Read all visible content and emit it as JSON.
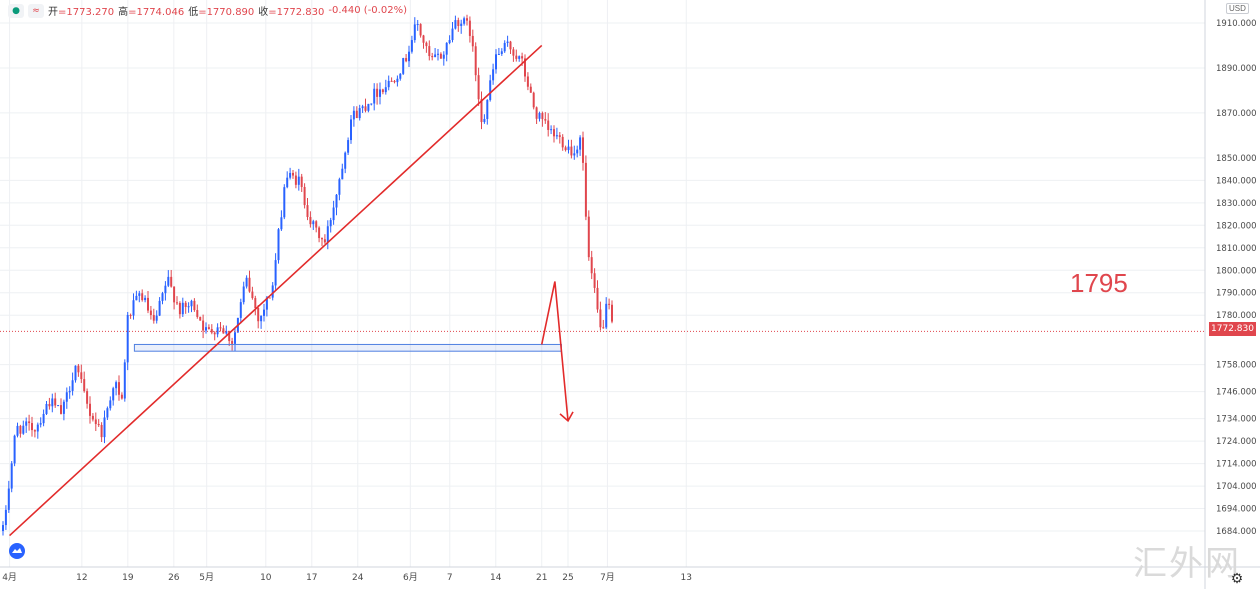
{
  "legend": {
    "open_label": "开",
    "open": "=1773.270",
    "high_label": "高",
    "high": "=1774.046",
    "low_label": "低",
    "low": "=1770.890",
    "close_label": "收",
    "close": "=1772.830",
    "change": "-0.440 (-0.02%)",
    "icon1": "●",
    "icon2": "≈"
  },
  "currency": "USD",
  "last_price_label": "1772.830",
  "annotation": "1795",
  "watermark": "汇外网",
  "icons": {
    "logo": "cloud-logo-icon",
    "settings": "gear-icon",
    "settings_glyph": "⚙"
  },
  "colors": {
    "up": "#2962ff",
    "down": "#e0464d",
    "trendline": "#e22b2b",
    "support_zone": "#4f7fe0"
  },
  "chart_data": {
    "type": "candlestick",
    "y_tick_labels": [
      "1684.000",
      "1694.000",
      "1704.000",
      "1714.000",
      "1724.000",
      "1734.000",
      "1746.000",
      "1758.000",
      "1780.000",
      "1790.000",
      "1800.000",
      "1810.000",
      "1820.000",
      "1830.000",
      "1840.000",
      "1850.000",
      "1870.000",
      "1890.000",
      "1910.000"
    ],
    "x_tick_labels": [
      "4月",
      "12",
      "19",
      "26",
      "5月",
      "10",
      "17",
      "24",
      "6月",
      "7",
      "14",
      "21",
      "25",
      "7月",
      "13"
    ],
    "ylim": [
      1668,
      1918
    ],
    "trendline": {
      "from": {
        "date": "2021-04-01",
        "price": 1682
      },
      "to": {
        "date": "2021-06-21",
        "price": 1900
      }
    },
    "support_zone": {
      "from_date": "2021-04-20",
      "to_date": "2021-06-24",
      "low": 1764,
      "high": 1767
    },
    "projection": [
      {
        "date": "2021-06-21",
        "price": 1767
      },
      {
        "date": "2021-06-23",
        "price": 1795
      },
      {
        "date": "2021-06-25",
        "price": 1733
      }
    ],
    "anchors": [
      [
        "2021-03-31",
        1684
      ],
      [
        "2021-04-02",
        1730
      ],
      [
        "2021-04-05",
        1730
      ],
      [
        "2021-04-07",
        1742
      ],
      [
        "2021-04-09",
        1736
      ],
      [
        "2021-04-11",
        1758
      ],
      [
        "2021-04-13",
        1738
      ],
      [
        "2021-04-15",
        1728
      ],
      [
        "2021-04-17",
        1752
      ],
      [
        "2021-04-18",
        1738
      ],
      [
        "2021-04-19",
        1779
      ],
      [
        "2021-04-21",
        1790
      ],
      [
        "2021-04-23",
        1775
      ],
      [
        "2021-04-25",
        1796
      ],
      [
        "2021-04-27",
        1782
      ],
      [
        "2021-04-29",
        1785
      ],
      [
        "2021-05-01",
        1772
      ],
      [
        "2021-05-03",
        1776
      ],
      [
        "2021-05-05",
        1768
      ],
      [
        "2021-05-07",
        1796
      ],
      [
        "2021-05-09",
        1778
      ],
      [
        "2021-05-11",
        1792
      ],
      [
        "2021-05-13",
        1842
      ],
      [
        "2021-05-15",
        1840
      ],
      [
        "2021-05-17",
        1820
      ],
      [
        "2021-05-19",
        1812
      ],
      [
        "2021-05-21",
        1838
      ],
      [
        "2021-05-23",
        1868
      ],
      [
        "2021-05-25",
        1873
      ],
      [
        "2021-05-27",
        1880
      ],
      [
        "2021-05-29",
        1884
      ],
      [
        "2021-05-31",
        1892
      ],
      [
        "2021-06-02",
        1910
      ],
      [
        "2021-06-04",
        1893
      ],
      [
        "2021-06-06",
        1896
      ],
      [
        "2021-06-08",
        1912
      ],
      [
        "2021-06-10",
        1908
      ],
      [
        "2021-06-12",
        1865
      ],
      [
        "2021-06-14",
        1895
      ],
      [
        "2021-06-16",
        1900
      ],
      [
        "2021-06-18",
        1892
      ],
      [
        "2021-06-20",
        1870
      ],
      [
        "2021-06-22",
        1862
      ],
      [
        "2021-06-24",
        1858
      ],
      [
        "2021-06-26",
        1852
      ],
      [
        "2021-06-27",
        1862
      ],
      [
        "2021-06-28",
        1808
      ],
      [
        "2021-06-30",
        1772
      ],
      [
        "2021-07-01",
        1785
      ],
      [
        "2021-07-02",
        1772
      ]
    ]
  }
}
